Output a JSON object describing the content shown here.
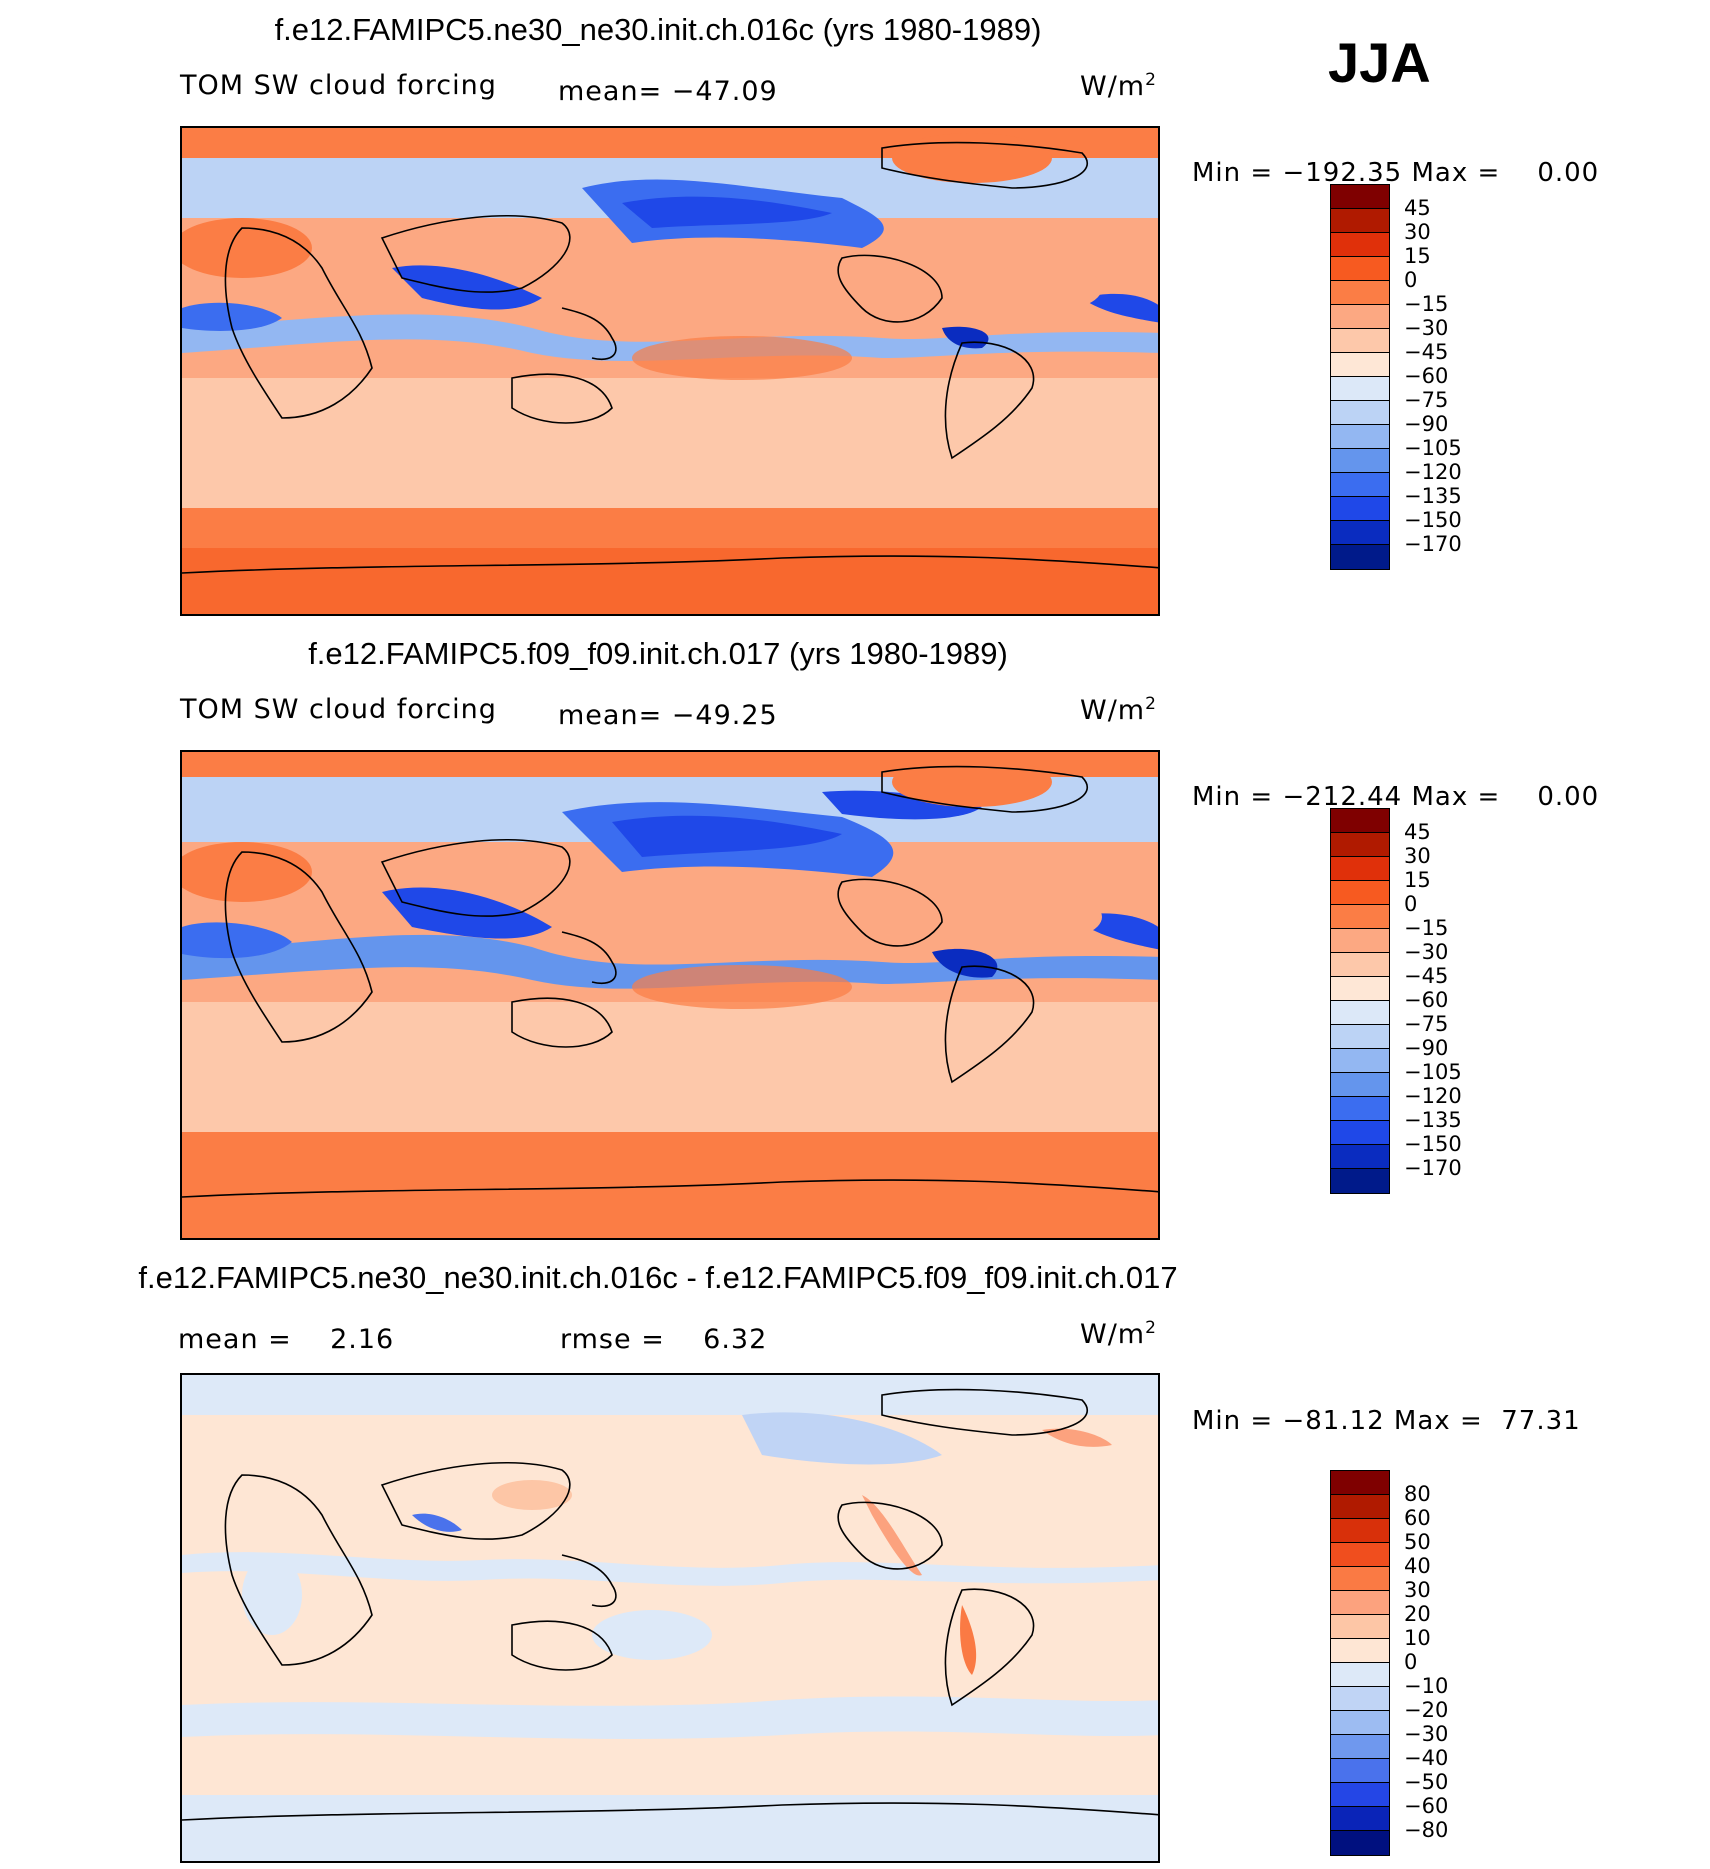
{
  "season": "JJA",
  "panels": [
    {
      "title": "f.e12.FAMIPC5.ne30_ne30.init.ch.016c (yrs 1980-1989)",
      "left_label": "TOM SW cloud forcing",
      "mid_label": "mean= −47.09",
      "units_label": "W/m",
      "units_power": "2",
      "minmax": "Min = −192.35 Max =    0.00",
      "colorbar_ticks": [
        "45",
        "30",
        "15",
        "0",
        "−15",
        "−30",
        "−45",
        "−60",
        "−75",
        "−90",
        "−105",
        "−120",
        "−135",
        "−150",
        "−170"
      ]
    },
    {
      "title": "f.e12.FAMIPC5.f09_f09.init.ch.017 (yrs 1980-1989)",
      "left_label": "TOM SW cloud forcing",
      "mid_label": "mean= −49.25",
      "units_label": "W/m",
      "units_power": "2",
      "minmax": "Min = −212.44 Max =    0.00",
      "colorbar_ticks": [
        "45",
        "30",
        "15",
        "0",
        "−15",
        "−30",
        "−45",
        "−60",
        "−75",
        "−90",
        "−105",
        "−120",
        "−135",
        "−150",
        "−170"
      ]
    },
    {
      "title": "f.e12.FAMIPC5.ne30_ne30.init.ch.016c - f.e12.FAMIPC5.f09_f09.init.ch.017",
      "left_label": "mean =    2.16",
      "mid_label": "rmse =    6.32",
      "units_label": "W/m",
      "units_power": "2",
      "minmax": "Min = −81.12 Max =  77.31",
      "colorbar_ticks": [
        "80",
        "60",
        "50",
        "40",
        "30",
        "20",
        "10",
        "0",
        "−10",
        "−20",
        "−30",
        "−40",
        "−50",
        "−60",
        "−80"
      ]
    }
  ],
  "colors": {
    "abs_scale": [
      "#7f0000",
      "#b01a00",
      "#e0300a",
      "#f75a20",
      "#fb7d45",
      "#fca882",
      "#fdc8aa",
      "#fee7d6",
      "#dce8f8",
      "#bcd3f5",
      "#93b7f2",
      "#6495ed",
      "#3b6df0",
      "#1f48e8",
      "#0a2cc0",
      "#001a8a"
    ],
    "diff_scale": [
      "#7f0000",
      "#b01a00",
      "#d8300a",
      "#f04e1e",
      "#fa7a44",
      "#fca27e",
      "#fdc6a6",
      "#fee6d4",
      "#dde9f8",
      "#c0d4f5",
      "#9dbcf2",
      "#6f98ee",
      "#4a72ec",
      "#2446e6",
      "#0a24b8",
      "#00107f"
    ],
    "land_outline": "#000000",
    "ocean_base_abs": "#fca882",
    "ocean_base_diff": "#fee6d4"
  }
}
